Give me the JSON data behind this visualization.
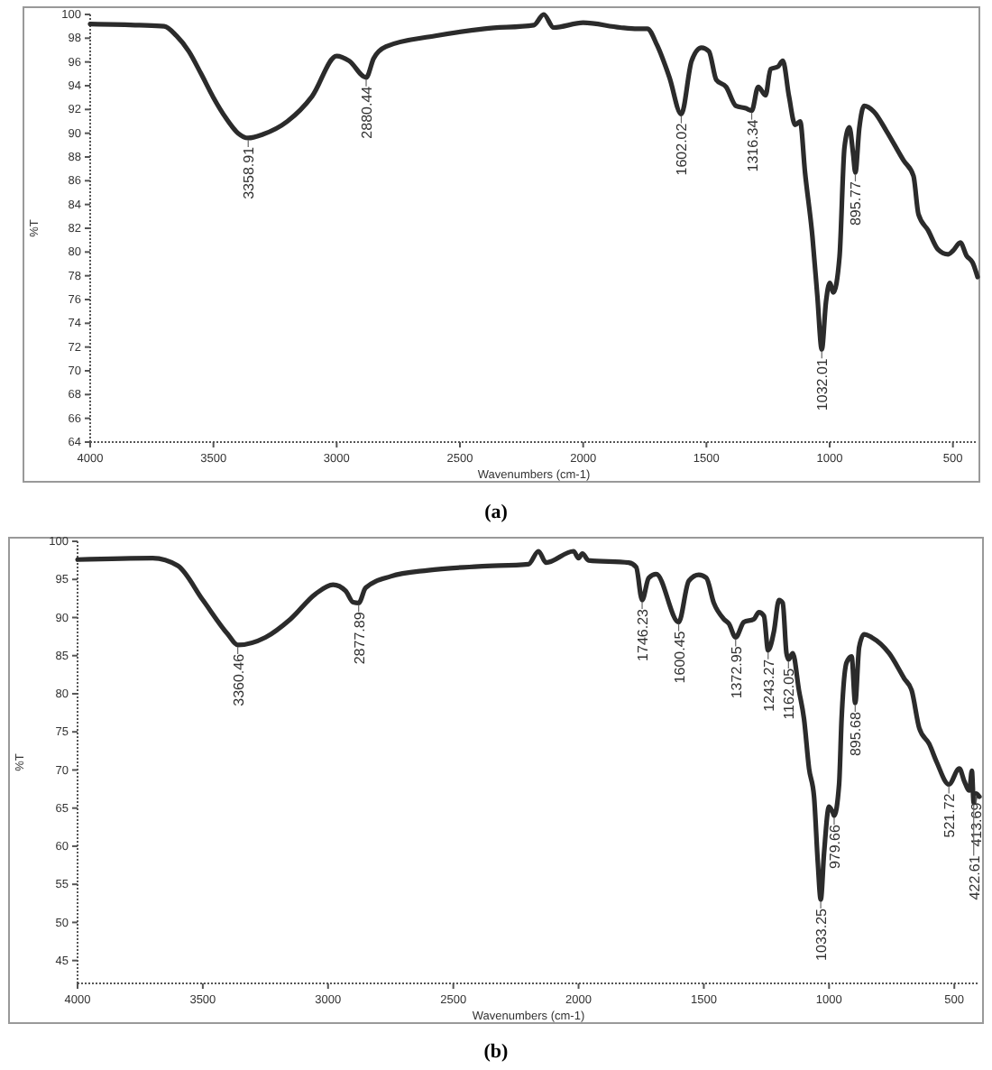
{
  "chart_data": [
    {
      "type": "line",
      "title": "(a)",
      "xlabel": "Wavenumbers (cm-1)",
      "ylabel": "%T",
      "xlim": [
        4000,
        400
      ],
      "xticks": [
        4000,
        3500,
        3000,
        2500,
        2000,
        1500,
        1000,
        500
      ],
      "ylim": [
        64,
        100
      ],
      "yticks": [
        64,
        66,
        68,
        70,
        72,
        74,
        76,
        78,
        80,
        82,
        84,
        86,
        88,
        90,
        92,
        94,
        96,
        98,
        100
      ],
      "grid": false,
      "marker": "none",
      "line_style": "solid",
      "series": [
        {
          "color": "#2b2b2b",
          "x": [
            4000,
            3800,
            3700,
            3650,
            3600,
            3550,
            3500,
            3450,
            3400,
            3358.91,
            3300,
            3200,
            3100,
            3000,
            2950,
            2880.44,
            2850,
            2800,
            2600,
            2400,
            2200,
            2160,
            2120,
            2000,
            1850,
            1780,
            1740,
            1700,
            1650,
            1602.02,
            1560,
            1520,
            1490,
            1460,
            1420,
            1380,
            1340,
            1316.34,
            1290,
            1260,
            1240,
            1210,
            1190,
            1165,
            1140,
            1120,
            1100,
            1070,
            1050,
            1032.01,
            1015,
            1000,
            985,
            960,
            940,
            920,
            905,
            895.77,
            880,
            860,
            820,
            770,
            700,
            660,
            640,
            600,
            560,
            520,
            500,
            470,
            445,
            420,
            400
          ],
          "values": [
            99.2,
            99.1,
            99.0,
            98.2,
            96.9,
            95.0,
            93.0,
            91.3,
            90.0,
            89.6,
            89.9,
            91.0,
            93.1,
            96.5,
            96.1,
            94.7,
            96.3,
            97.3,
            98.2,
            98.8,
            99.1,
            100,
            98.9,
            99.3,
            98.9,
            98.8,
            98.8,
            97.4,
            94.7,
            91.6,
            96.1,
            97.2,
            96.9,
            94.5,
            93.9,
            92.3,
            92.1,
            91.9,
            93.9,
            93.2,
            95.4,
            95.6,
            96.1,
            93.1,
            90.7,
            91.0,
            86.7,
            81.3,
            76.3,
            71.8,
            75.8,
            77.4,
            76.6,
            79.6,
            88.8,
            90.5,
            88.3,
            86.7,
            90.4,
            92.3,
            91.8,
            90.2,
            87.7,
            86.4,
            83.2,
            81.8,
            80.2,
            79.8,
            80.1,
            80.8,
            79.7,
            79.1,
            77.9
          ]
        }
      ],
      "annotations": [
        {
          "text": "3358.91",
          "x": 3358.91,
          "y": 89.6
        },
        {
          "text": "2880.44",
          "x": 2880.44,
          "y": 94.7
        },
        {
          "text": "1602.02",
          "x": 1602.02,
          "y": 91.6
        },
        {
          "text": "1316.34",
          "x": 1316.34,
          "y": 91.9
        },
        {
          "text": "1032.01",
          "x": 1032.01,
          "y": 71.8
        },
        {
          "text": "895.77",
          "x": 895.77,
          "y": 86.7
        }
      ]
    },
    {
      "type": "line",
      "title": "(b)",
      "xlabel": "Wavenumbers (cm-1)",
      "ylabel": "%T",
      "xlim": [
        4000,
        400
      ],
      "xticks": [
        4000,
        3500,
        3000,
        2500,
        2000,
        1500,
        1000,
        500
      ],
      "ylim": [
        42,
        100
      ],
      "yticks": [
        45,
        50,
        55,
        60,
        65,
        70,
        75,
        80,
        85,
        90,
        95,
        100
      ],
      "grid": false,
      "marker": "none",
      "line_style": "solid",
      "series": [
        {
          "color": "#2b2b2b",
          "x": [
            4000,
            3700,
            3600,
            3500,
            3400,
            3360.46,
            3250,
            3150,
            3050,
            2980,
            2930,
            2900,
            2877.89,
            2850,
            2750,
            2600,
            2400,
            2200,
            2160,
            2130,
            2020,
            2000,
            1985,
            1960,
            1800,
            1770,
            1746.23,
            1720,
            1690,
            1600.45,
            1560,
            1520,
            1490,
            1460,
            1420,
            1400,
            1372.95,
            1340,
            1300,
            1280,
            1260,
            1243.27,
            1220,
            1200,
            1185,
            1170,
            1162.05,
            1145,
            1120,
            1100,
            1080,
            1060,
            1045,
            1033.25,
            1020,
            1000,
            985,
            979.66,
            960,
            950,
            930,
            910,
            895.68,
            880,
            860,
            830,
            760,
            700,
            670,
            640,
            600,
            570,
            521.72,
            480,
            460,
            440,
            430,
            422.61,
            413.69,
            400
          ],
          "values": [
            97.6,
            97.8,
            96.8,
            92.3,
            87.8,
            86.4,
            87.4,
            89.8,
            93.1,
            94.3,
            93.5,
            92.0,
            91.9,
            93.9,
            95.4,
            96.2,
            96.7,
            97.0,
            98.7,
            97.2,
            98.7,
            97.8,
            98.4,
            97.5,
            97.2,
            96.6,
            92.3,
            95.2,
            95.7,
            89.4,
            94.8,
            95.6,
            95.2,
            91.9,
            89.8,
            89.2,
            87.4,
            89.4,
            89.8,
            90.7,
            90.2,
            85.7,
            88.2,
            92.3,
            91.9,
            85.3,
            84.5,
            85.3,
            80.4,
            76.7,
            70.2,
            66.5,
            57.9,
            53.0,
            59.1,
            65.2,
            64.4,
            64.0,
            68.1,
            76.7,
            84.1,
            84.9,
            78.8,
            86.1,
            87.8,
            87.4,
            85.3,
            82.0,
            80.4,
            75.5,
            73.4,
            71.0,
            68.1,
            70.2,
            68.5,
            67.3,
            69.9,
            65.7,
            66.9,
            66.5
          ]
        }
      ],
      "annotations": [
        {
          "text": "3360.46",
          "x": 3360.46,
          "y": 86.4
        },
        {
          "text": "2877.89",
          "x": 2877.89,
          "y": 91.9
        },
        {
          "text": "1746.23",
          "x": 1746.23,
          "y": 92.3
        },
        {
          "text": "1600.45",
          "x": 1600.45,
          "y": 89.4
        },
        {
          "text": "1372.95",
          "x": 1372.95,
          "y": 87.4
        },
        {
          "text": "1243.27",
          "x": 1243.27,
          "y": 85.7
        },
        {
          "text": "1162.05",
          "x": 1162.05,
          "y": 84.5
        },
        {
          "text": "1033.25",
          "x": 1033.25,
          "y": 53.0
        },
        {
          "text": "979.66",
          "x": 979.66,
          "y": 64.0
        },
        {
          "text": "895.68",
          "x": 895.68,
          "y": 78.8
        },
        {
          "text": "521.72",
          "x": 521.72,
          "y": 68.1
        },
        {
          "text": "413.69",
          "x": 413.69,
          "y": 66.9
        },
        {
          "text": "422.61",
          "x": 422.61,
          "y": 65.7
        }
      ]
    }
  ]
}
